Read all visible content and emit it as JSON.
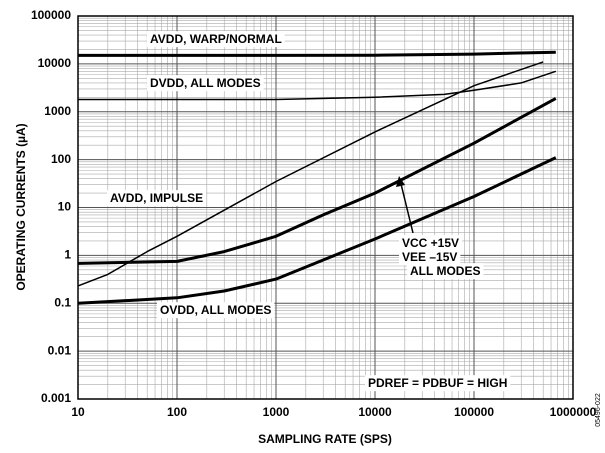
{
  "chart_data": {
    "type": "line",
    "x_label": "SAMPLING RATE (SPS)",
    "y_label": "OPERATING CURRENTS (µA)",
    "xscale": "log",
    "yscale": "log",
    "grid": true,
    "minor_grid": true,
    "xlim": [
      10,
      1000000
    ],
    "xticks": [
      10,
      100,
      1000,
      10000,
      100000,
      1000000
    ],
    "ylim": [
      0.001,
      100000
    ],
    "yticks": [
      0.001,
      0.01,
      0.1,
      1,
      10,
      100,
      1000,
      10000,
      100000
    ],
    "series": [
      {
        "color": "#000000",
        "line_width": 3,
        "x": [
          10,
          1000,
          10000,
          100000,
          670000
        ],
        "values": [
          15000,
          15000,
          15200,
          16000,
          17500
        ]
      },
      {
        "color": "#000000",
        "line_width": 1.5,
        "x": [
          10,
          1000,
          10000,
          50000,
          100000,
          300000,
          670000
        ],
        "values": [
          1800,
          1800,
          2000,
          2300,
          2800,
          4000,
          7000
        ]
      },
      {
        "color": "#000000",
        "line_width": 1.5,
        "x": [
          10,
          20,
          50,
          100,
          1000,
          10000,
          100000,
          500000
        ],
        "values": [
          0.23,
          0.4,
          1.2,
          2.5,
          35,
          380,
          3500,
          11000
        ]
      },
      {
        "color": "#000000",
        "line_width": 3,
        "x": [
          10,
          100,
          300,
          1000,
          3000,
          10000,
          100000,
          670000
        ],
        "values": [
          0.68,
          0.75,
          1.2,
          2.5,
          7,
          20,
          220,
          1900
        ]
      },
      {
        "color": "#000000",
        "line_width": 3,
        "x": [
          10,
          100,
          300,
          1000,
          3000,
          10000,
          100000,
          670000
        ],
        "values": [
          0.1,
          0.13,
          0.18,
          0.32,
          0.8,
          2.2,
          17,
          110
        ]
      }
    ],
    "annotations": [
      "AVDD, WARP/NORMAL",
      "DVDD, ALL MODES",
      "AVDD, IMPULSE",
      "VCC +15V",
      "VEE –15V",
      "ALL MODES",
      "OVDD, ALL MODES",
      "PDREF = PDBUF = HIGH",
      "05496-022"
    ]
  }
}
